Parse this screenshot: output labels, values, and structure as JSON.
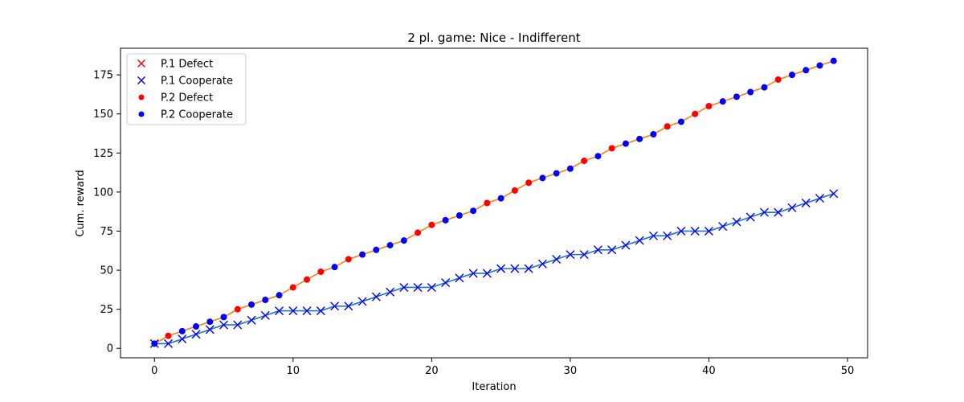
{
  "chart_data": {
    "type": "line",
    "title": "2 pl. game: Nice - Indifferent",
    "xlabel": "Iteration",
    "ylabel": "Cum. reward",
    "xlim": [
      -2.45,
      51.45
    ],
    "ylim": [
      -6.05,
      192.05
    ],
    "xticks": [
      0,
      10,
      20,
      30,
      40,
      50
    ],
    "yticks": [
      0,
      25,
      50,
      75,
      100,
      125,
      150,
      175
    ],
    "grid": false,
    "legend_position": "top-left",
    "legend": [
      "P.1 Defect",
      "P.1 Cooperate",
      "P.2 Defect",
      "P.2 Cooperate"
    ],
    "series": [
      {
        "name": "Player 1",
        "line_color": "#1f77b4",
        "x": [
          0,
          1,
          2,
          3,
          4,
          5,
          6,
          7,
          8,
          9,
          10,
          11,
          12,
          13,
          14,
          15,
          16,
          17,
          18,
          19,
          20,
          21,
          22,
          23,
          24,
          25,
          26,
          27,
          28,
          29,
          30,
          31,
          32,
          33,
          34,
          35,
          36,
          37,
          38,
          39,
          40,
          41,
          42,
          43,
          44,
          45,
          46,
          47,
          48,
          49
        ],
        "y": [
          3,
          3,
          6,
          9,
          12,
          15,
          15,
          18,
          21,
          24,
          24,
          24,
          24,
          27,
          27,
          30,
          33,
          36,
          39,
          39,
          39,
          42,
          45,
          48,
          48,
          51,
          51,
          51,
          54,
          57,
          60,
          60,
          63,
          63,
          66,
          69,
          72,
          72,
          75,
          75,
          75,
          78,
          81,
          84,
          87,
          87,
          90,
          93,
          96,
          99
        ],
        "actions": [
          "C",
          "C",
          "C",
          "C",
          "C",
          "C",
          "C",
          "C",
          "C",
          "C",
          "C",
          "C",
          "C",
          "C",
          "C",
          "C",
          "C",
          "C",
          "C",
          "C",
          "C",
          "C",
          "C",
          "C",
          "C",
          "C",
          "C",
          "C",
          "C",
          "C",
          "C",
          "C",
          "C",
          "C",
          "C",
          "C",
          "C",
          "C",
          "C",
          "C",
          "C",
          "C",
          "C",
          "C",
          "C",
          "C",
          "C",
          "C",
          "C",
          "C"
        ]
      },
      {
        "name": "Player 2",
        "line_color": "#ff7f0e",
        "x": [
          0,
          1,
          2,
          3,
          4,
          5,
          6,
          7,
          8,
          9,
          10,
          11,
          12,
          13,
          14,
          15,
          16,
          17,
          18,
          19,
          20,
          21,
          22,
          23,
          24,
          25,
          26,
          27,
          28,
          29,
          30,
          31,
          32,
          33,
          34,
          35,
          36,
          37,
          38,
          39,
          40,
          41,
          42,
          43,
          44,
          45,
          46,
          47,
          48,
          49
        ],
        "y": [
          3,
          8,
          11,
          14,
          17,
          20,
          25,
          28,
          31,
          34,
          39,
          44,
          49,
          52,
          57,
          60,
          63,
          66,
          69,
          74,
          79,
          82,
          85,
          88,
          93,
          96,
          101,
          106,
          109,
          112,
          115,
          120,
          123,
          128,
          131,
          134,
          137,
          142,
          145,
          150,
          155,
          158,
          161,
          164,
          167,
          172,
          175,
          178,
          181,
          184
        ],
        "actions": [
          "C",
          "D",
          "C",
          "C",
          "C",
          "C",
          "D",
          "C",
          "C",
          "C",
          "D",
          "D",
          "D",
          "C",
          "D",
          "C",
          "C",
          "C",
          "C",
          "D",
          "D",
          "C",
          "C",
          "C",
          "D",
          "C",
          "D",
          "D",
          "C",
          "C",
          "C",
          "D",
          "C",
          "D",
          "C",
          "C",
          "C",
          "D",
          "C",
          "D",
          "D",
          "C",
          "C",
          "C",
          "C",
          "D",
          "C",
          "C",
          "C",
          "C"
        ]
      }
    ],
    "colors": {
      "defect": "#ff0000",
      "cooperate": "#0000ff",
      "axes": "#000000"
    }
  }
}
